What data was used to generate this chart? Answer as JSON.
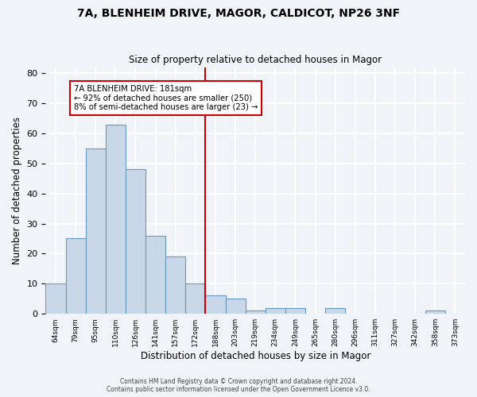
{
  "title": "7A, BLENHEIM DRIVE, MAGOR, CALDICOT, NP26 3NF",
  "subtitle": "Size of property relative to detached houses in Magor",
  "xlabel": "Distribution of detached houses by size in Magor",
  "ylabel": "Number of detached properties",
  "bar_color": "#c8d8e8",
  "bar_edge_color": "#6699bb",
  "background_color": "#f0f4f8",
  "grid_color": "#ffffff",
  "bins": [
    "64sqm",
    "79sqm",
    "95sqm",
    "110sqm",
    "126sqm",
    "141sqm",
    "157sqm",
    "172sqm",
    "188sqm",
    "203sqm",
    "219sqm",
    "234sqm",
    "249sqm",
    "265sqm",
    "280sqm",
    "296sqm",
    "311sqm",
    "327sqm",
    "342sqm",
    "358sqm",
    "373sqm"
  ],
  "values": [
    10,
    25,
    55,
    63,
    48,
    26,
    19,
    10,
    6,
    5,
    1,
    2,
    2,
    0,
    2,
    0,
    0,
    0,
    0,
    1,
    0
  ],
  "vline_x": 7.5,
  "vline_color": "#cc0000",
  "annotation_title": "7A BLENHEIM DRIVE: 181sqm",
  "annotation_line1": "← 92% of detached houses are smaller (250)",
  "annotation_line2": "8% of semi-detached houses are larger (23) →",
  "annotation_box_color": "#cc0000",
  "ylim": [
    0,
    82
  ],
  "yticks": [
    0,
    10,
    20,
    30,
    40,
    50,
    60,
    70,
    80
  ],
  "footer1": "Contains HM Land Registry data © Crown copyright and database right 2024.",
  "footer2": "Contains public sector information licensed under the Open Government Licence v3.0."
}
